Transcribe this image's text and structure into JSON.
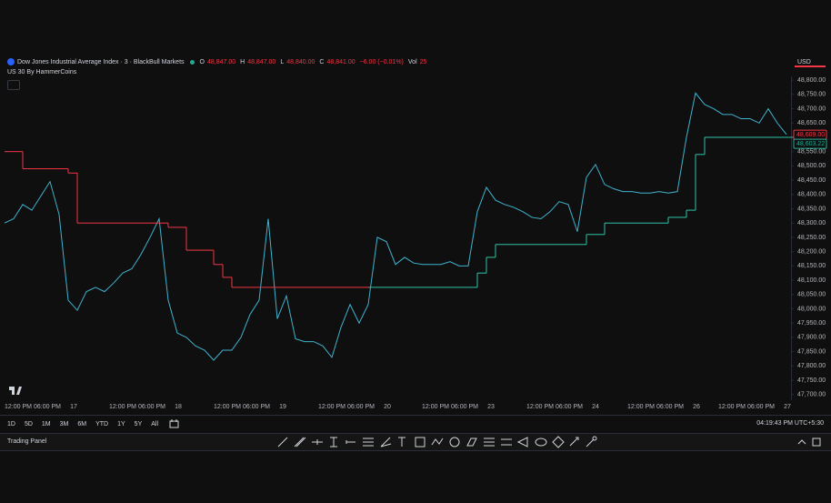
{
  "header": {
    "symbol": "Dow Jones Industrial Average Index · 3 · BlackBull Markets",
    "ohlc": [
      {
        "key": "O",
        "value": "48,847.00"
      },
      {
        "key": "H",
        "value": "48,847.00"
      },
      {
        "key": "L",
        "value": "48,840.00"
      },
      {
        "key": "C",
        "value": "48,841.00"
      }
    ],
    "change": "−6.00 (−0.01%)",
    "volume_key": "Vol",
    "volume": "25",
    "indicator": "US 30 By HammerCoins",
    "currency": "USD"
  },
  "chart_data": {
    "type": "line",
    "series": [
      {
        "color": "#3fb3cf",
        "values": [
          48300,
          48315,
          48365,
          48345,
          48395,
          48445,
          48330,
          48030,
          47995,
          48060,
          48075,
          48060,
          48090,
          48125,
          48140,
          48190,
          48250,
          48315,
          48030,
          47915,
          47900,
          47870,
          47855,
          47820,
          47855,
          47855,
          47900,
          47980,
          48030,
          48315,
          47965,
          48045,
          47895,
          47885,
          47885,
          47870,
          47830,
          47935,
          48015,
          47950,
          48015,
          48250,
          48235,
          48155,
          48180,
          48160,
          48155,
          48155,
          48155,
          48165,
          48150,
          48150,
          48340,
          48425,
          48380,
          48365,
          48355,
          48340,
          48320,
          48315,
          48340,
          48375,
          48365,
          48270,
          48460,
          48505,
          48435,
          48420,
          48410,
          48410,
          48405,
          48405,
          48410,
          48405,
          48410,
          48600,
          48755,
          48715,
          48700,
          48680,
          48680,
          48665,
          48665,
          48650,
          48700,
          48650,
          48610
        ]
      },
      {
        "color": "#f23645",
        "step": true,
        "values": [
          48550,
          48550,
          48490,
          48490,
          48490,
          48490,
          48490,
          48475,
          48300,
          48300,
          48300,
          48300,
          48300,
          48300,
          48300,
          48300,
          48300,
          48300,
          48285,
          48285,
          48205,
          48205,
          48205,
          48155,
          48110,
          48075,
          48075,
          48075,
          48075,
          48075,
          48075,
          48075,
          48075,
          48075,
          48075,
          48075,
          48075,
          48075,
          48075,
          48075,
          null,
          null,
          null,
          null,
          null,
          null,
          null,
          null,
          null,
          null,
          null,
          null,
          null,
          null,
          null,
          null,
          null,
          null,
          null,
          null,
          null,
          null,
          null,
          null,
          null,
          null,
          null,
          null,
          null,
          null,
          null,
          null,
          null,
          null,
          null,
          null,
          null,
          null,
          null,
          null,
          null,
          null,
          null,
          null,
          null,
          null,
          null
        ]
      },
      {
        "color": "#2ec4a6",
        "step": true,
        "values": [
          null,
          null,
          null,
          null,
          null,
          null,
          null,
          null,
          null,
          null,
          null,
          null,
          null,
          null,
          null,
          null,
          null,
          null,
          null,
          null,
          null,
          null,
          null,
          null,
          null,
          null,
          null,
          null,
          null,
          null,
          null,
          null,
          null,
          null,
          null,
          null,
          null,
          null,
          null,
          null,
          48075,
          48075,
          48075,
          48075,
          48075,
          48075,
          48075,
          48075,
          48075,
          48075,
          48075,
          48075,
          48125,
          48180,
          48225,
          48225,
          48225,
          48225,
          48225,
          48225,
          48225,
          48225,
          48225,
          48225,
          48260,
          48260,
          48300,
          48300,
          48300,
          48300,
          48300,
          48300,
          48300,
          48320,
          48320,
          48345,
          48540,
          48600,
          48600,
          48600,
          48600,
          48600,
          48600,
          48600,
          48600,
          48600,
          48600
        ]
      }
    ],
    "ylim": [
      47680,
      48810
    ],
    "yticks": [
      {
        "value": 48800,
        "label": "48,800.00"
      },
      {
        "value": 48750,
        "label": "48,750.00"
      },
      {
        "value": 48700,
        "label": "48,700.00"
      },
      {
        "value": 48650,
        "label": "48,650.00"
      },
      {
        "value": 48600,
        "label": "48,600.00"
      },
      {
        "value": 48550,
        "label": "48,550.00"
      },
      {
        "value": 48500,
        "label": "48,500.00"
      },
      {
        "value": 48450,
        "label": "48,450.00"
      },
      {
        "value": 48400,
        "label": "48,400.00"
      },
      {
        "value": 48350,
        "label": "48,350.00"
      },
      {
        "value": 48300,
        "label": "48,300.00"
      },
      {
        "value": 48250,
        "label": "48,250.00"
      },
      {
        "value": 48200,
        "label": "48,200.00"
      },
      {
        "value": 48150,
        "label": "48,150.00"
      },
      {
        "value": 48100,
        "label": "48,100.00"
      },
      {
        "value": 48050,
        "label": "48,050.00"
      },
      {
        "value": 48000,
        "label": "48,000.00"
      },
      {
        "value": 47950,
        "label": "47,950.00"
      },
      {
        "value": 47900,
        "label": "47,900.00"
      },
      {
        "value": 47850,
        "label": "47,850.00"
      },
      {
        "value": 47800,
        "label": "47,800.00"
      },
      {
        "value": 47750,
        "label": "47,750.00"
      },
      {
        "value": 47700,
        "label": "47,700.00"
      }
    ],
    "price_tags": [
      {
        "value": 48609,
        "label": "48,609.00",
        "color": "#f23645"
      },
      {
        "value": 48603.22,
        "label": "48,603.22",
        "color": "#22ab94"
      }
    ],
    "x_labels": [
      "12:00 PM",
      "06:00 PM",
      "17",
      "12:00 PM",
      "06:00 PM",
      "18",
      "12:00 PM",
      "06:00 PM",
      "19",
      "12:00 PM",
      "06:00 PM",
      "20",
      "12:00 PM",
      "06:00 PM",
      "23",
      "12:00 PM",
      "06:00 PM",
      "24",
      "12:00 PM",
      "06:00 PM",
      "26",
      "12:00 PM",
      "06:00 PM",
      "27"
    ]
  },
  "toolbar": {
    "timeframes": [
      "1D",
      "5D",
      "1M",
      "3M",
      "6M",
      "YTD",
      "1Y",
      "5Y",
      "All"
    ],
    "clock": "04:19:43 PM UTC+5:30",
    "panel": "Trading Panel"
  }
}
